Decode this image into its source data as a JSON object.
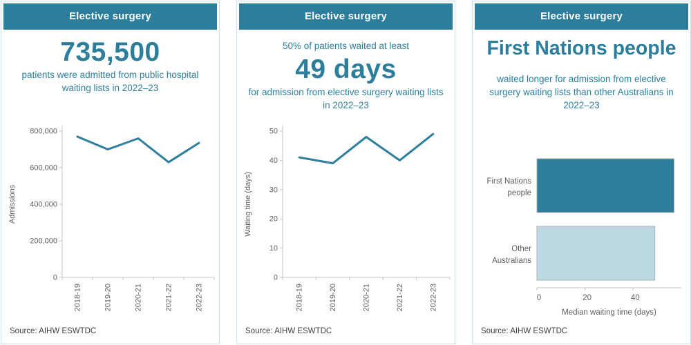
{
  "accent_color": "#2d7e9d",
  "light_bar_color": "#bcd8e2",
  "cards": [
    {
      "header": "Elective surgery",
      "stat": "735,500",
      "desc": "patients were admitted from public hospital waiting lists in 2022–23",
      "source": "Source: AIHW ESWTDC"
    },
    {
      "header": "Elective surgery",
      "pre": "50% of patients waited at least",
      "stat": "49 days",
      "desc": "for admission from elective surgery waiting lists in 2022–23",
      "source": "Source: AIHW ESWTDC"
    },
    {
      "header": "Elective surgery",
      "stat": "First Nations people",
      "desc": "waited longer for admission from elective surgery waiting lists than other Australians in 2022–23",
      "source": "Source: AIHW ESWTDC"
    }
  ],
  "chart_data": [
    {
      "type": "line",
      "categories": [
        "2018-19",
        "2019-20",
        "2020-21",
        "2021-22",
        "2022-23"
      ],
      "values": [
        770000,
        700000,
        760000,
        630000,
        735500
      ],
      "xlabel": "",
      "ylabel": "Admissions",
      "ylim": [
        0,
        800000
      ],
      "yticks": [
        0,
        200000,
        400000,
        600000,
        800000
      ],
      "grid": false,
      "line_color": "#2d7e9d"
    },
    {
      "type": "line",
      "categories": [
        "2018-19",
        "2019-20",
        "2020-21",
        "2021-22",
        "2022-23"
      ],
      "values": [
        41,
        39,
        48,
        40,
        49
      ],
      "xlabel": "",
      "ylabel": "Waiting time (days)",
      "ylim": [
        0,
        50
      ],
      "yticks": [
        0,
        10,
        20,
        30,
        40,
        50
      ],
      "grid": false,
      "line_color": "#2d7e9d"
    },
    {
      "type": "bar",
      "orientation": "horizontal",
      "categories": [
        [
          "First Nations",
          "people"
        ],
        [
          "Other",
          "Australians"
        ]
      ],
      "values": [
        57,
        49
      ],
      "bar_colors": [
        "#2d7e9d",
        "#bcd8e2"
      ],
      "xlabel": "Median waiting time (days)",
      "ylabel": "",
      "xlim": [
        0,
        60
      ],
      "xticks": [
        0,
        20,
        40
      ],
      "grid": false
    }
  ]
}
